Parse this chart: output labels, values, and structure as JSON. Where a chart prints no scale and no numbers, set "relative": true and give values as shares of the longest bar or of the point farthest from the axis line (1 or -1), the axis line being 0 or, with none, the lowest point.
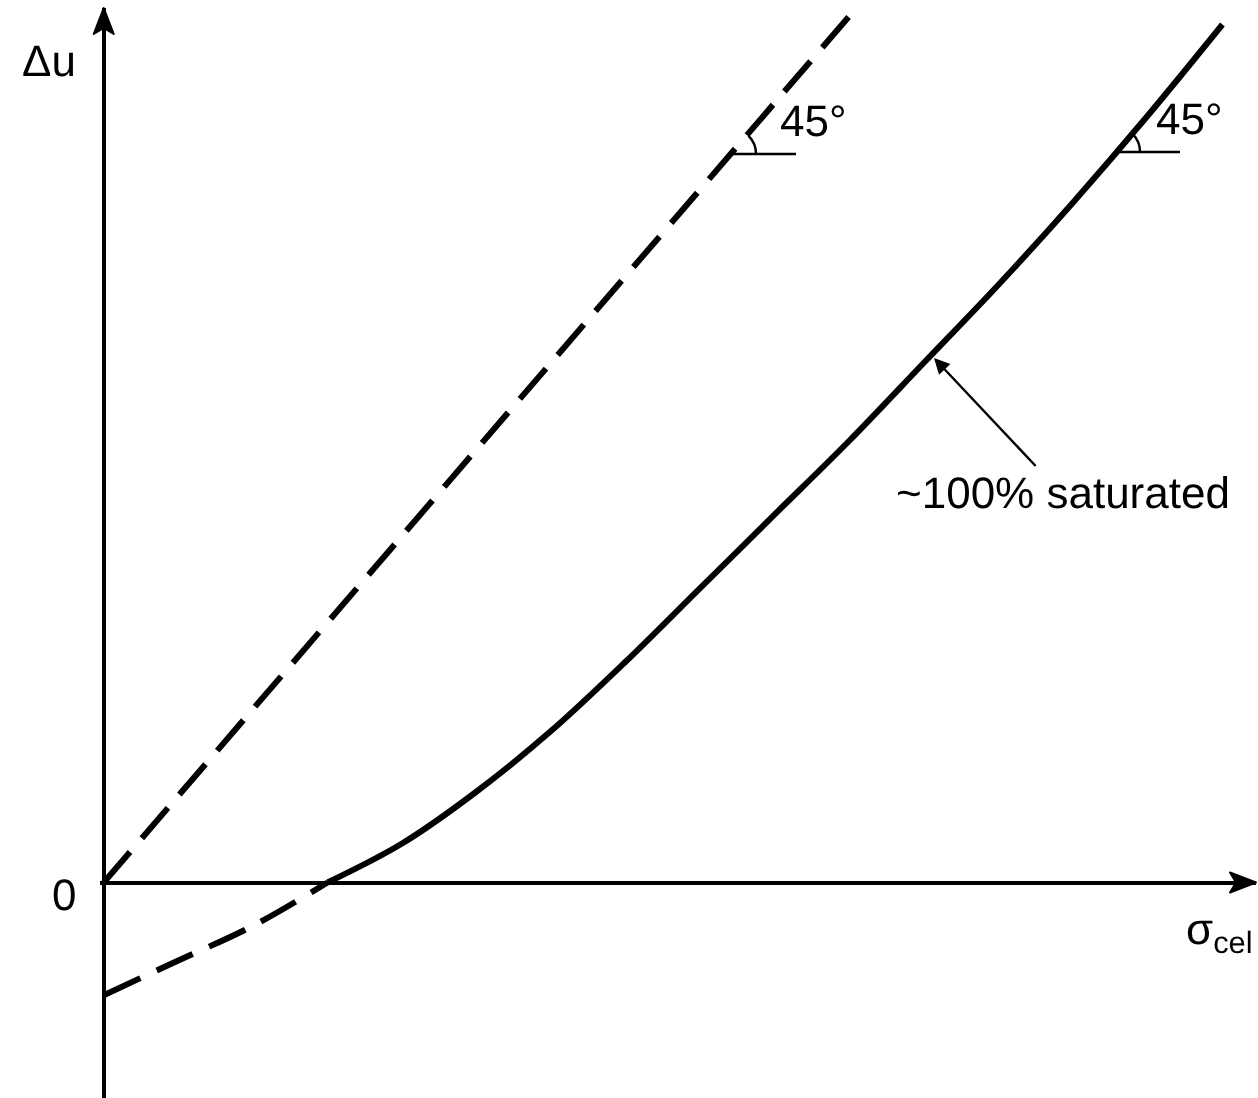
{
  "chart_data": {
    "type": "line",
    "relative": true,
    "xlabel": "σ$_{cel}$",
    "ylabel": "Δu",
    "categories": [
      null,
      null,
      null,
      null,
      null,
      null,
      null,
      null,
      null,
      null,
      null,
      null,
      null,
      null,
      null,
      null
    ],
    "series": [
      {
        "color": "#000000",
        "line_style": "dashed",
        "values": [
          0,
          0.1,
          0.2,
          0.3,
          0.4,
          0.5,
          0.6,
          0.7,
          0.8,
          0.9,
          1,
          null,
          null,
          null,
          null,
          null
        ]
      },
      {
        "color": "#000000",
        "line_style": "dashed",
        "values": [
          -0.13,
          -0.09,
          -0.05,
          0,
          null,
          null,
          null,
          null,
          null,
          null,
          null,
          null,
          null,
          null,
          null,
          null
        ]
      },
      {
        "color": "#000000",
        "line_style": "solid",
        "values": [
          null,
          null,
          null,
          0,
          0.045,
          0.105,
          0.175,
          0.255,
          0.34,
          0.425,
          0.51,
          0.6,
          0.69,
          0.785,
          0.885,
          0.99
        ]
      }
    ],
    "annotations": [
      "45°",
      "45°",
      "~100% saturated",
      "0"
    ]
  }
}
